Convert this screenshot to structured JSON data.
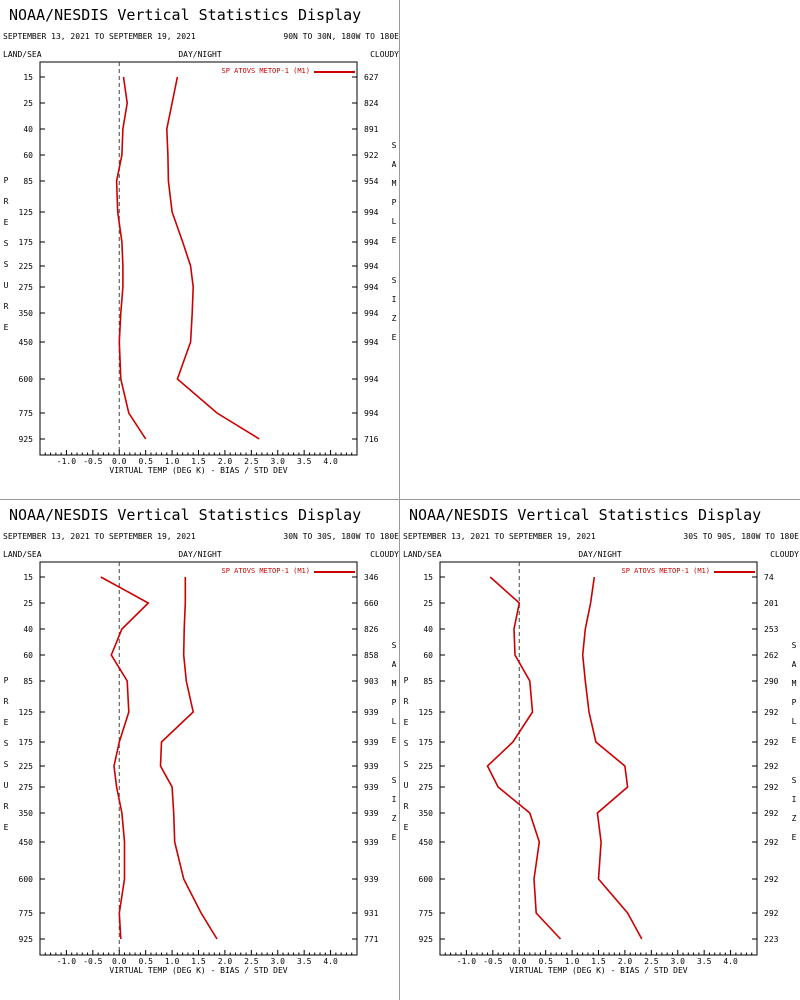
{
  "panels": [
    {
      "title": "NOAA/NESDIS Vertical Statistics Display",
      "date_range": "SEPTEMBER 13, 2021 TO SEPTEMBER 19, 2021",
      "region": "90N TO 30N, 180W TO 180E",
      "land_sea": "LAND/SEA",
      "day_night": "DAY/NIGHT",
      "cloudy": "CLOUDY",
      "y_side_label": "PRESSURE",
      "right_side_label": "SAMPLE SIZE",
      "legend": "SP ATOVS METOP-1 (M1)",
      "xlabel": "VIRTUAL TEMP (DEG K) - BIAS / STD DEV",
      "chart_data": {
        "type": "line",
        "pressure_levels": [
          "15",
          "25",
          "40",
          "60",
          "85",
          "125",
          "175",
          "225",
          "275",
          "350",
          "450",
          "600",
          "775",
          "925"
        ],
        "xlim": [
          -1.5,
          4.5
        ],
        "xticks": [
          "-1.0",
          "-0.5",
          "0.0",
          "0.5",
          "1.0",
          "1.5",
          "2.0",
          "2.5",
          "3.0",
          "3.5",
          "4.0"
        ],
        "bias": [
          0.08,
          0.15,
          0.07,
          0.05,
          -0.05,
          -0.03,
          0.05,
          0.07,
          0.07,
          0.03,
          0.0,
          0.03,
          0.18,
          0.5
        ],
        "std_dev": [
          1.1,
          1.0,
          0.9,
          0.92,
          0.93,
          1.0,
          1.2,
          1.35,
          1.4,
          1.38,
          1.35,
          1.1,
          1.85,
          2.65
        ],
        "sample_size": [
          "627",
          "824",
          "891",
          "922",
          "954",
          "994",
          "994",
          "994",
          "994",
          "994",
          "994",
          "994",
          "994",
          "716"
        ]
      }
    },
    {
      "title": "NOAA/NESDIS Vertical Statistics Display",
      "date_range": "SEPTEMBER 13, 2021 TO SEPTEMBER 19, 2021",
      "region": "30N TO 30S, 180W TO 180E",
      "land_sea": "LAND/SEA",
      "day_night": "DAY/NIGHT",
      "cloudy": "CLOUDY",
      "y_side_label": "PRESSURE",
      "right_side_label": "SAMPLE SIZE",
      "legend": "SP ATOVS METOP-1 (M1)",
      "xlabel": "VIRTUAL TEMP (DEG K) - BIAS / STD DEV",
      "chart_data": {
        "type": "line",
        "pressure_levels": [
          "15",
          "25",
          "40",
          "60",
          "85",
          "125",
          "175",
          "225",
          "275",
          "350",
          "450",
          "600",
          "775",
          "925"
        ],
        "xlim": [
          -1.5,
          4.5
        ],
        "xticks": [
          "-1.0",
          "-0.5",
          "0.0",
          "0.5",
          "1.0",
          "1.5",
          "2.0",
          "2.5",
          "3.0",
          "3.5",
          "4.0"
        ],
        "bias": [
          -0.35,
          0.55,
          0.05,
          -0.15,
          0.15,
          0.18,
          0.0,
          -0.1,
          -0.05,
          0.05,
          0.1,
          0.1,
          0.0,
          0.03
        ],
        "std_dev": [
          1.25,
          1.25,
          1.23,
          1.22,
          1.27,
          1.4,
          0.8,
          0.78,
          1.0,
          1.03,
          1.05,
          1.22,
          1.55,
          1.85
        ],
        "sample_size": [
          "346",
          "660",
          "826",
          "858",
          "903",
          "939",
          "939",
          "939",
          "939",
          "939",
          "939",
          "939",
          "931",
          "771"
        ]
      }
    },
    {
      "title": "NOAA/NESDIS Vertical Statistics Display",
      "date_range": "SEPTEMBER 13, 2021 TO SEPTEMBER 19, 2021",
      "region": "30S TO 90S, 180W TO 180E",
      "land_sea": "LAND/SEA",
      "day_night": "DAY/NIGHT",
      "cloudy": "CLOUDY",
      "y_side_label": "PRESSURE",
      "right_side_label": "SAMPLE SIZE",
      "legend": "SP ATOVS METOP-1 (M1)",
      "xlabel": "VIRTUAL TEMP (DEG K) - BIAS / STD DEV",
      "chart_data": {
        "type": "line",
        "pressure_levels": [
          "15",
          "25",
          "40",
          "60",
          "85",
          "125",
          "175",
          "225",
          "275",
          "350",
          "450",
          "600",
          "775",
          "925"
        ],
        "xlim": [
          -1.5,
          4.5
        ],
        "xticks": [
          "-1.0",
          "-0.5",
          "0.0",
          "0.5",
          "1.0",
          "1.5",
          "2.0",
          "2.5",
          "3.0",
          "3.5",
          "4.0"
        ],
        "bias": [
          -0.55,
          0.0,
          -0.1,
          -0.08,
          0.2,
          0.25,
          -0.12,
          -0.6,
          -0.4,
          0.2,
          0.38,
          0.28,
          0.32,
          0.78
        ],
        "std_dev": [
          1.42,
          1.35,
          1.25,
          1.2,
          1.25,
          1.32,
          1.45,
          2.0,
          2.05,
          1.48,
          1.55,
          1.5,
          2.05,
          2.32
        ],
        "sample_size": [
          "74",
          "201",
          "253",
          "262",
          "290",
          "292",
          "292",
          "292",
          "292",
          "292",
          "292",
          "292",
          "292",
          "223"
        ]
      }
    }
  ]
}
